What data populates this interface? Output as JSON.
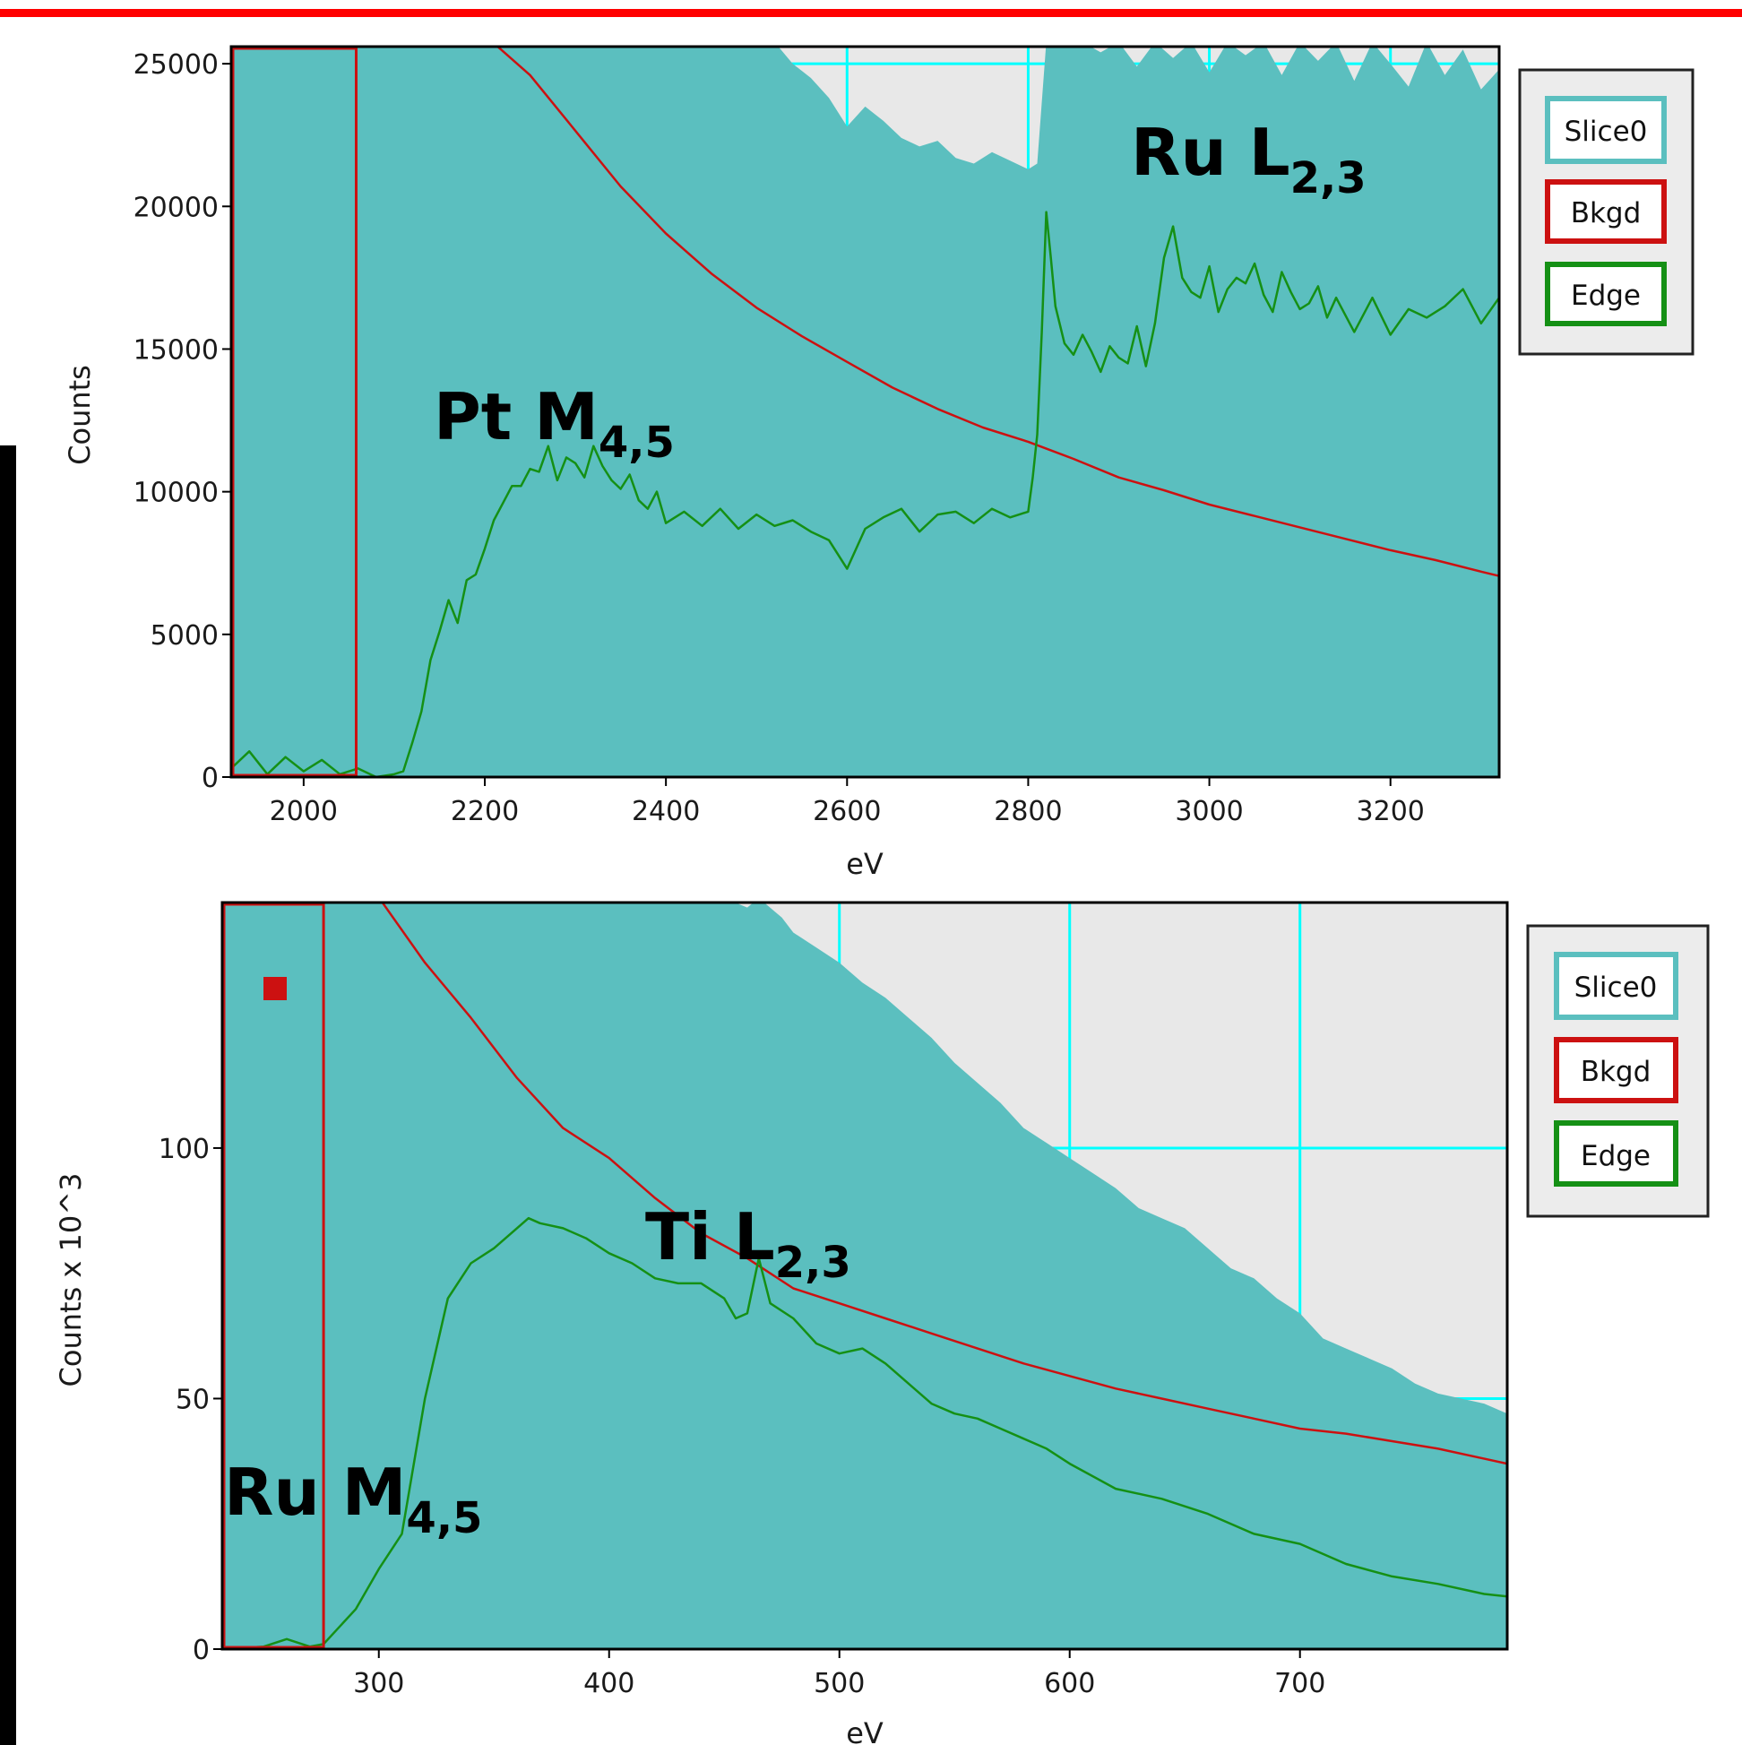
{
  "colors": {
    "slice_fill": "#5bbfbf",
    "background_region": "#e8e8e8",
    "grid": "#00ffff",
    "bkgd": "#cc1111",
    "edge": "#159015",
    "window_box": "#cc1111",
    "legend_bg": "#ececec",
    "accent_bar": "#ff0000"
  },
  "chart_data": [
    {
      "type": "line",
      "xlabel": "eV",
      "ylabel": "Counts",
      "xlim": [
        1920,
        3320
      ],
      "ylim": [
        0,
        25600
      ],
      "x_ticks": [
        2000,
        2200,
        2400,
        2600,
        2800,
        3000,
        3200
      ],
      "y_ticks": [
        0,
        5000,
        10000,
        15000,
        20000,
        25000
      ],
      "grid": true,
      "legend_position": "right",
      "legend": [
        "Slice0",
        "Bkgd",
        "Edge"
      ],
      "background_window_ev": [
        1920,
        2058
      ],
      "series": [
        {
          "name": "Slice0",
          "style": "filled-area",
          "x": [
            1920,
            2400,
            2520,
            2540,
            2560,
            2580,
            2600,
            2620,
            2640,
            2660,
            2680,
            2700,
            2720,
            2740,
            2760,
            2780,
            2800,
            2810,
            2820,
            2840,
            2860,
            2880,
            2900,
            2920,
            2940,
            2960,
            2980,
            3000,
            3020,
            3040,
            3060,
            3080,
            3100,
            3120,
            3140,
            3160,
            3180,
            3200,
            3220,
            3240,
            3260,
            3280,
            3300,
            3320
          ],
          "values": [
            26000,
            26000,
            26000,
            25000,
            24500,
            23800,
            22800,
            23500,
            23000,
            22400,
            22100,
            22300,
            21700,
            21500,
            21900,
            21600,
            21300,
            21500,
            26000,
            26000,
            26000,
            25400,
            26000,
            24900,
            26000,
            25200,
            26000,
            24700,
            26000,
            25300,
            26000,
            24600,
            26000,
            25100,
            26000,
            24400,
            26000,
            25000,
            24200,
            26000,
            24600,
            25500,
            24100,
            24800
          ]
        },
        {
          "name": "Bkgd",
          "style": "line",
          "x": [
            2200,
            2250,
            2300,
            2350,
            2400,
            2450,
            2500,
            2550,
            2600,
            2650,
            2700,
            2750,
            2800,
            2850,
            2900,
            2950,
            3000,
            3050,
            3100,
            3150,
            3200,
            3250,
            3300,
            3320
          ],
          "values": [
            26000,
            24600,
            22650,
            20700,
            19050,
            17650,
            16450,
            15450,
            14550,
            13650,
            12900,
            12250,
            11750,
            11150,
            10500,
            10050,
            9550,
            9150,
            8750,
            8350,
            7950,
            7600,
            7200,
            7050
          ]
        },
        {
          "name": "Edge",
          "style": "line",
          "x": [
            1920,
            1940,
            1960,
            1980,
            2000,
            2020,
            2040,
            2060,
            2080,
            2100,
            2110,
            2120,
            2130,
            2140,
            2150,
            2160,
            2170,
            2180,
            2190,
            2200,
            2210,
            2220,
            2230,
            2240,
            2250,
            2260,
            2270,
            2280,
            2290,
            2300,
            2310,
            2320,
            2330,
            2340,
            2350,
            2360,
            2370,
            2380,
            2390,
            2400,
            2420,
            2440,
            2460,
            2480,
            2500,
            2520,
            2540,
            2560,
            2580,
            2600,
            2620,
            2640,
            2660,
            2680,
            2700,
            2720,
            2740,
            2760,
            2780,
            2800,
            2805,
            2810,
            2815,
            2820,
            2825,
            2830,
            2840,
            2850,
            2860,
            2870,
            2880,
            2890,
            2900,
            2910,
            2920,
            2930,
            2940,
            2950,
            2960,
            2970,
            2980,
            2990,
            3000,
            3010,
            3020,
            3030,
            3040,
            3050,
            3060,
            3070,
            3080,
            3090,
            3100,
            3110,
            3120,
            3130,
            3140,
            3160,
            3180,
            3200,
            3220,
            3240,
            3260,
            3280,
            3300,
            3320
          ],
          "values": [
            300,
            900,
            100,
            700,
            200,
            600,
            100,
            300,
            0,
            100,
            200,
            1200,
            2300,
            4100,
            5100,
            6200,
            5400,
            6900,
            7100,
            8000,
            9000,
            9600,
            10200,
            10200,
            10800,
            10700,
            11600,
            10400,
            11200,
            11000,
            10500,
            11600,
            10900,
            10400,
            10100,
            10600,
            9700,
            9400,
            10000,
            8900,
            9300,
            8800,
            9400,
            8700,
            9200,
            8800,
            9000,
            8600,
            8300,
            7300,
            8700,
            9100,
            9400,
            8600,
            9200,
            9300,
            8900,
            9400,
            9100,
            9300,
            10500,
            12000,
            15600,
            19800,
            18200,
            16500,
            15200,
            14800,
            15500,
            14900,
            14200,
            15100,
            14700,
            14500,
            15800,
            14400,
            15900,
            18200,
            19300,
            17500,
            17000,
            16800,
            17900,
            16300,
            17100,
            17500,
            17300,
            18000,
            16900,
            16300,
            17700,
            17000,
            16400,
            16600,
            17200,
            16100,
            16800,
            15600,
            16800,
            15500,
            16400,
            16100,
            16500,
            17100,
            15900,
            16800
          ]
        }
      ],
      "annotations": [
        {
          "text": "Pt M",
          "sub": "4,5",
          "x": 2250,
          "y": 12000
        },
        {
          "text": "Ru L",
          "sub": "2,3",
          "x": 3020,
          "y": 21800
        }
      ]
    },
    {
      "type": "line",
      "xlabel": "eV",
      "ylabel": "Counts x 10^3",
      "xlim": [
        232,
        790
      ],
      "ylim": [
        0,
        149
      ],
      "x_ticks": [
        300,
        400,
        500,
        600,
        700
      ],
      "y_ticks": [
        0,
        50,
        100
      ],
      "grid": true,
      "legend_position": "right",
      "legend": [
        "Slice0",
        "Bkgd",
        "Edge"
      ],
      "background_window_ev": [
        232,
        276
      ],
      "series": [
        {
          "name": "Slice0",
          "style": "filled-area",
          "x": [
            232,
            450,
            460,
            465,
            475,
            480,
            490,
            500,
            510,
            520,
            530,
            540,
            550,
            560,
            570,
            580,
            590,
            600,
            610,
            620,
            630,
            640,
            650,
            660,
            670,
            680,
            690,
            700,
            710,
            720,
            730,
            740,
            750,
            760,
            770,
            780,
            790
          ],
          "values": [
            150,
            150,
            148,
            150,
            146,
            143,
            140,
            137,
            133,
            130,
            126,
            122,
            117,
            113,
            109,
            104,
            101,
            98,
            95,
            92,
            88,
            86,
            84,
            80,
            76,
            74,
            70,
            67,
            62,
            60,
            58,
            56,
            53,
            51,
            50,
            49,
            47
          ]
        },
        {
          "name": "Bkgd",
          "style": "line",
          "x": [
            300,
            320,
            340,
            360,
            380,
            400,
            420,
            440,
            460,
            480,
            500,
            520,
            540,
            560,
            580,
            600,
            620,
            640,
            660,
            680,
            700,
            720,
            740,
            760,
            790
          ],
          "values": [
            150,
            137,
            126,
            114,
            104,
            98,
            90,
            83,
            78,
            72,
            69,
            66,
            63,
            60,
            57,
            54.5,
            52,
            50,
            48,
            46,
            44,
            43,
            41.5,
            40,
            37
          ]
        },
        {
          "name": "Edge",
          "style": "line",
          "x": [
            232,
            250,
            260,
            270,
            276,
            280,
            290,
            300,
            310,
            320,
            330,
            340,
            350,
            360,
            365,
            370,
            380,
            390,
            400,
            410,
            420,
            430,
            440,
            450,
            455,
            460,
            465,
            470,
            480,
            490,
            500,
            510,
            520,
            530,
            540,
            550,
            560,
            570,
            580,
            590,
            600,
            620,
            640,
            660,
            680,
            700,
            720,
            740,
            760,
            780,
            790
          ],
          "values": [
            0,
            0.5,
            2,
            0.5,
            1,
            3,
            8,
            16,
            23,
            50,
            70,
            77,
            80,
            84,
            86,
            85,
            84,
            82,
            79,
            77,
            74,
            73,
            73,
            70,
            66,
            67,
            78,
            69,
            66,
            61,
            59,
            60,
            57,
            53,
            49,
            47,
            46,
            44,
            42,
            40,
            37,
            32,
            30,
            27,
            23,
            21,
            17,
            14.5,
            13,
            11,
            10.5
          ]
        }
      ],
      "annotations": [
        {
          "text": "Ti L",
          "sub": "2,3",
          "x": 420,
          "y": 75
        },
        {
          "text": "Ru M",
          "sub": "4,5",
          "x": 233,
          "y": 25
        }
      ]
    }
  ]
}
